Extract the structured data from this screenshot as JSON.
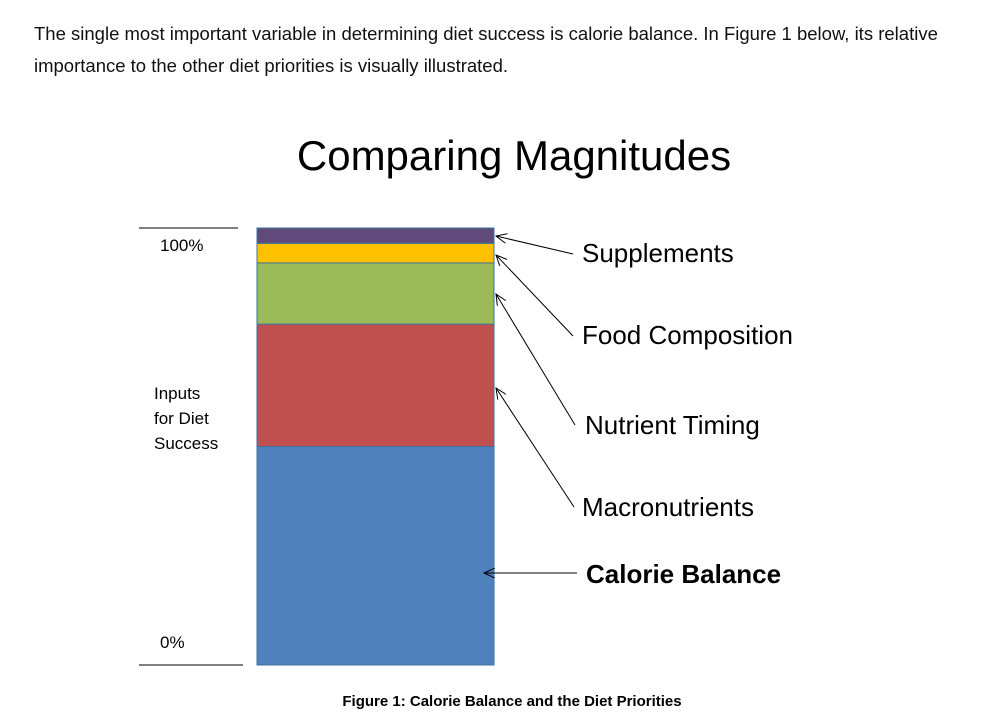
{
  "intro_text": "The single most important variable in determining diet success is calorie balance. In Figure 1 below, its relative importance to the other diet priorities is visually illustrated.",
  "caption": "Figure 1: Calorie Balance and the Diet Priorities",
  "chart_data": {
    "type": "bar",
    "stacked": true,
    "title": "Comparing Magnitudes",
    "ylabel": "Inputs for Diet Success",
    "ylim": [
      0,
      100
    ],
    "y_tick_labels": [
      "0%",
      "100%"
    ],
    "categories": [
      ""
    ],
    "legend": "none",
    "grid": false,
    "series": [
      {
        "name": "Calorie Balance",
        "values": [
          50
        ],
        "color": "#4F81BD",
        "bold": true
      },
      {
        "name": "Macronutrients",
        "values": [
          28
        ],
        "color": "#C0504D"
      },
      {
        "name": "Nutrient Timing",
        "values": [
          14
        ],
        "color": "#9BBB59"
      },
      {
        "name": "Food Composition",
        "values": [
          4.5
        ],
        "color": "#FFC000"
      },
      {
        "name": "Supplements",
        "values": [
          3.5
        ],
        "color": "#604A7B"
      }
    ]
  }
}
